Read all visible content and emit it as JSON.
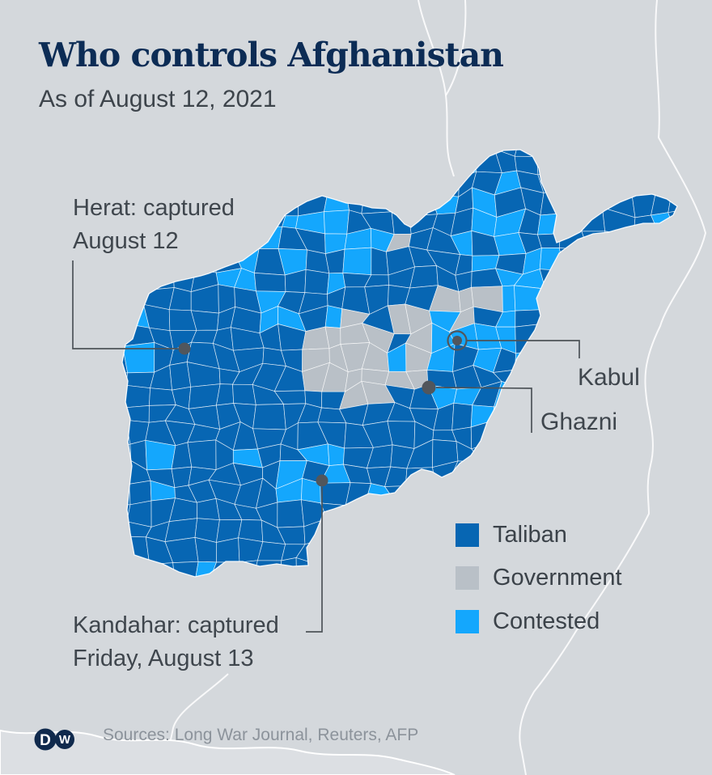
{
  "header": {
    "title": "Who controls Afghanistan",
    "subtitle": "As of August 12, 2021"
  },
  "map": {
    "annotations": [
      {
        "id": "herat",
        "lines": [
          "Herat: captured",
          "August 12"
        ]
      },
      {
        "id": "kabul",
        "lines": [
          "Kabul"
        ]
      },
      {
        "id": "ghazni",
        "lines": [
          "Ghazni"
        ]
      },
      {
        "id": "kandahar",
        "lines": [
          "Kandahar: captured",
          "Friday, August 13"
        ]
      }
    ]
  },
  "legend": {
    "items": [
      {
        "label": "Taliban",
        "color": "#0766b3"
      },
      {
        "label": "Government",
        "color": "#b9c0c7"
      },
      {
        "label": "Contested",
        "color": "#14a7fd"
      }
    ]
  },
  "footer": {
    "sources": "Sources: Long War Journal, Reuters, AFP",
    "logo_letters": [
      "D",
      "W"
    ]
  }
}
